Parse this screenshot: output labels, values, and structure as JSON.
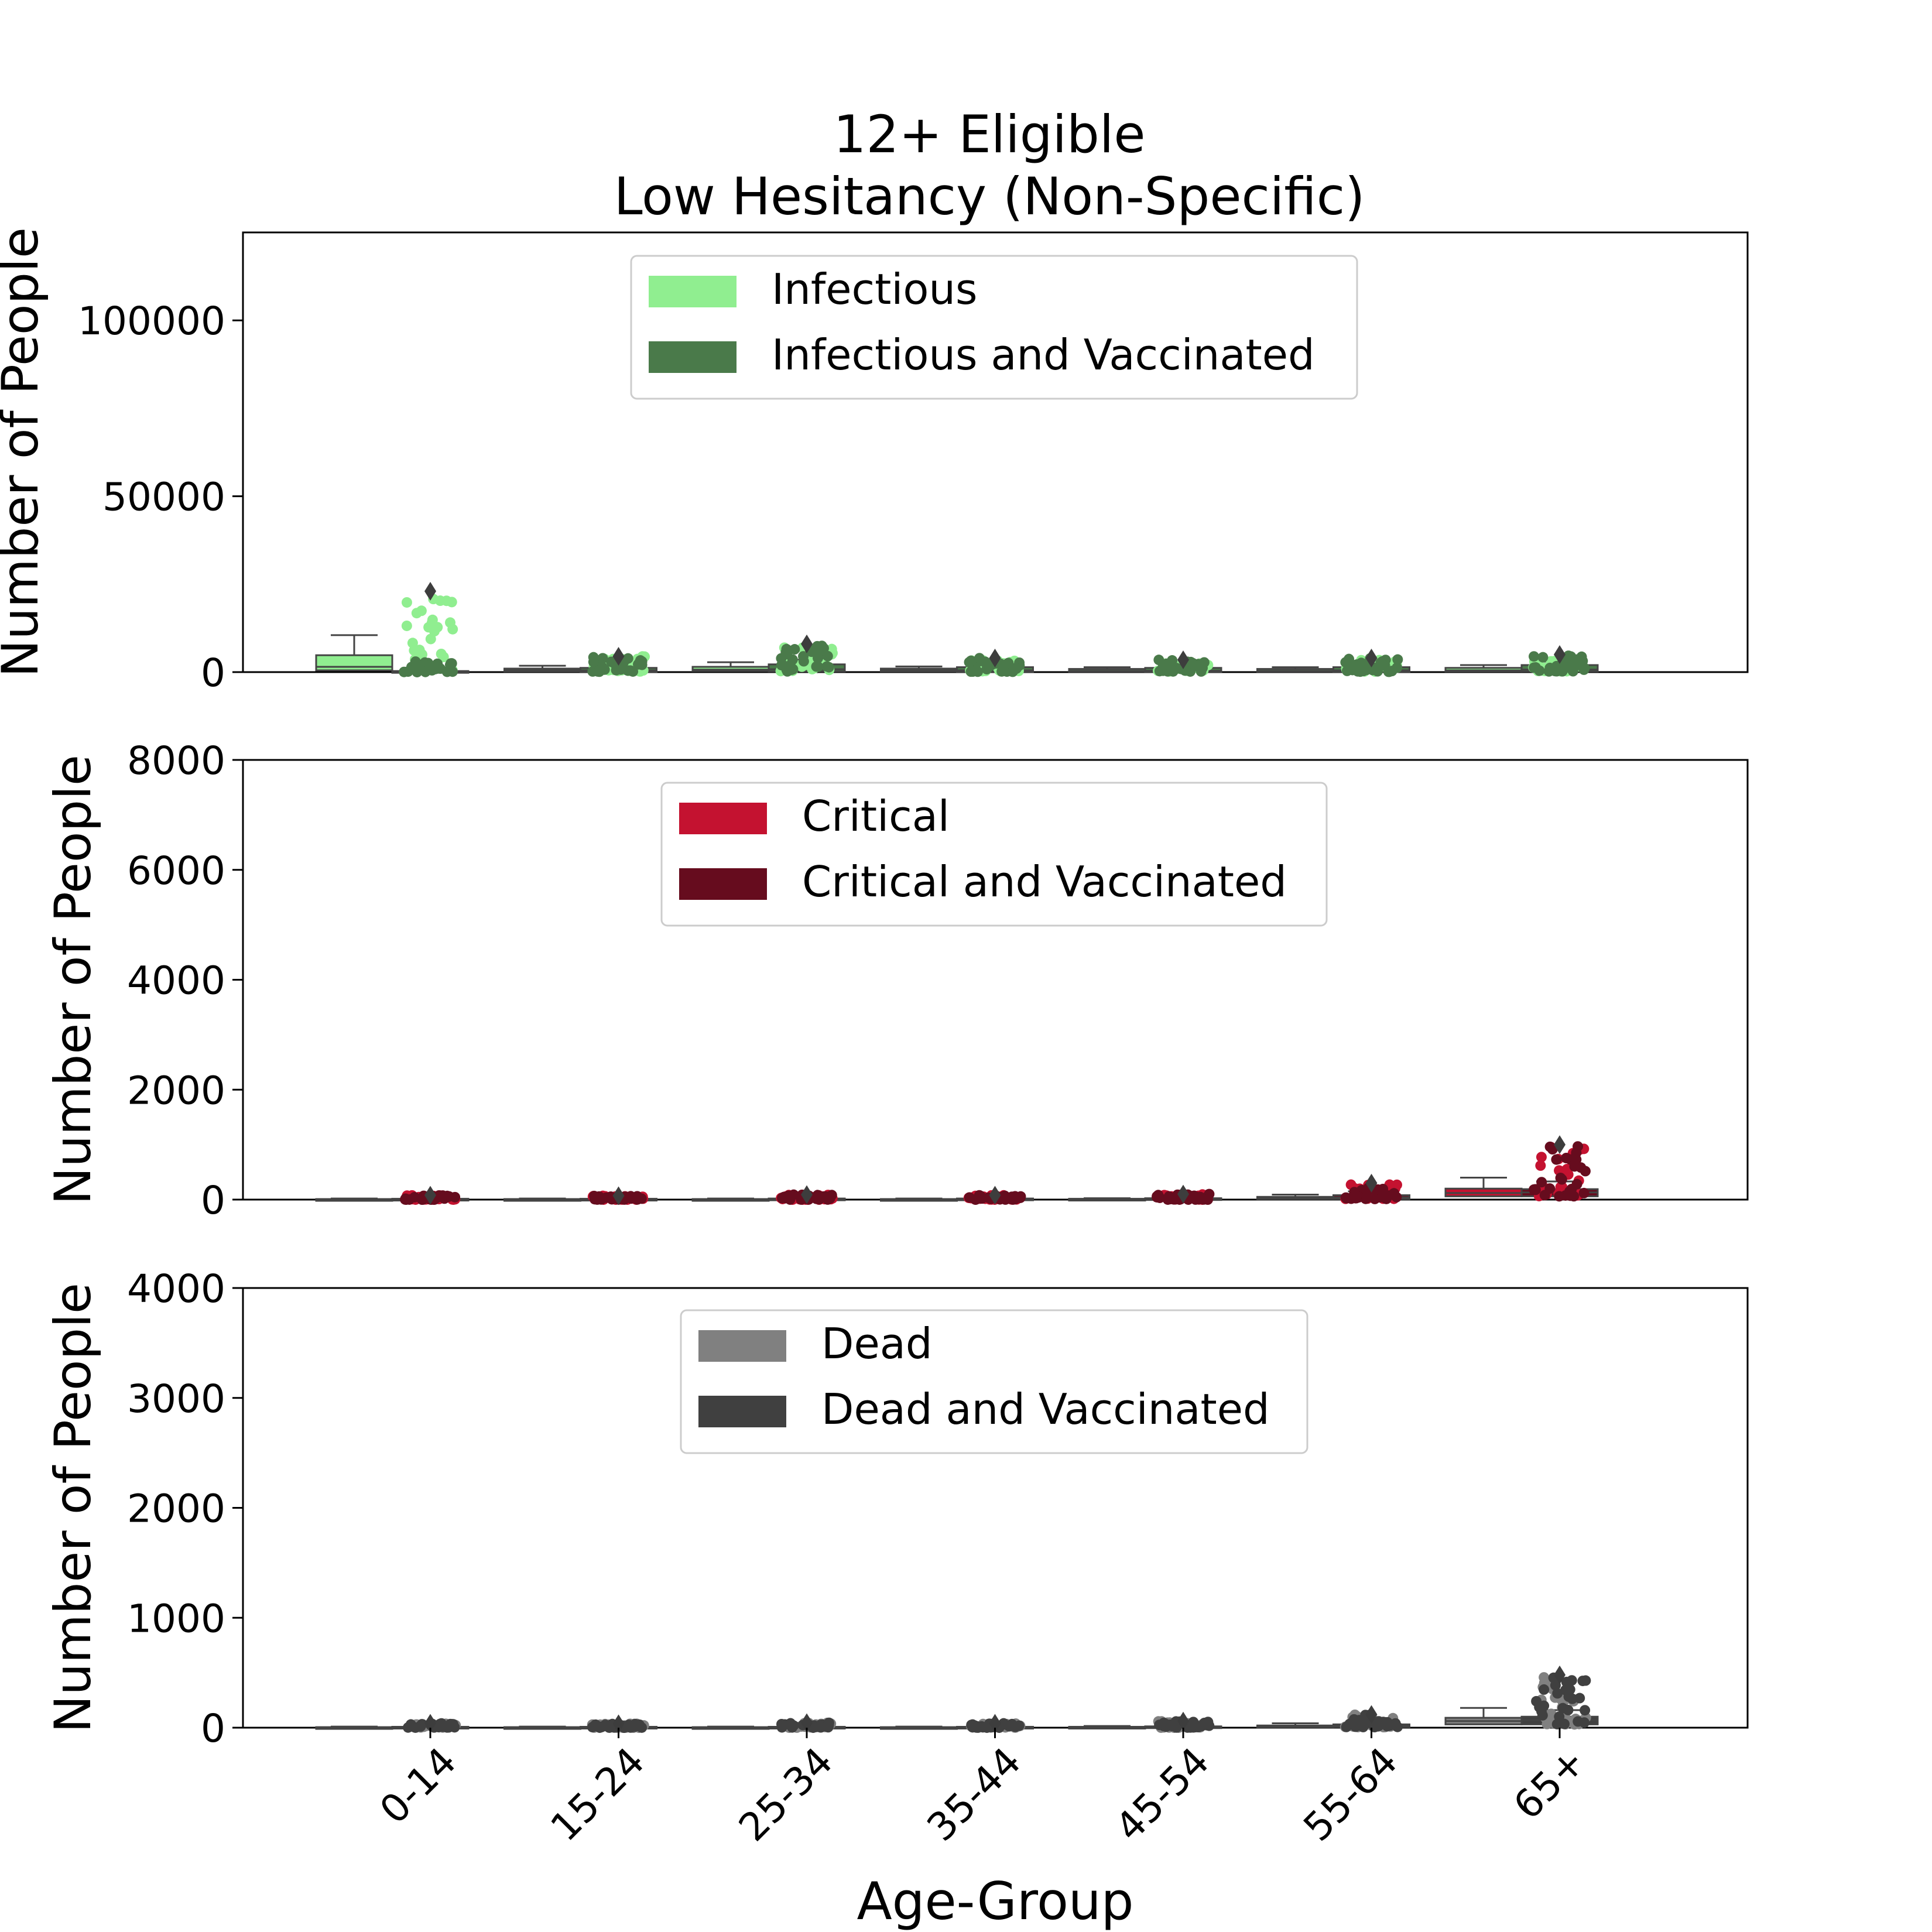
{
  "figure": {
    "title_line1": "12+ Eligible",
    "title_line2": "Low Hesitancy (Non-Specific)",
    "xlabel": "Age-Group"
  },
  "chart_data": [
    {
      "type": "box",
      "ylabel": "Number of People",
      "ylim": [
        0,
        125000
      ],
      "yticks": [
        0,
        50000,
        100000
      ],
      "categories": [
        "0-14",
        "15-24",
        "25-34",
        "35-44",
        "45-54",
        "55-64",
        "65+"
      ],
      "legend_placement": "top-center",
      "series": [
        {
          "name": "Infectious",
          "color": "#90ee90",
          "boxes": [
            {
              "q1": 500,
              "q3": 4800,
              "median": 1500,
              "whisker_high": 10500,
              "outlier_max": 23000
            },
            {
              "q1": 200,
              "q3": 1000,
              "median": 500,
              "whisker_high": 1800,
              "outlier_max": 4500
            },
            {
              "q1": 300,
              "q3": 1500,
              "median": 700,
              "whisker_high": 2800,
              "outlier_max": 7000
            },
            {
              "q1": 200,
              "q3": 1000,
              "median": 500,
              "whisker_high": 1600,
              "outlier_max": 3500
            },
            {
              "q1": 150,
              "q3": 900,
              "median": 400,
              "whisker_high": 1400,
              "outlier_max": 3000
            },
            {
              "q1": 150,
              "q3": 900,
              "median": 400,
              "whisker_high": 1400,
              "outlier_max": 3500
            },
            {
              "q1": 200,
              "q3": 1200,
              "median": 500,
              "whisker_high": 2000,
              "outlier_max": 4000
            }
          ]
        },
        {
          "name": "Infectious and Vaccinated",
          "color": "#4a7a4a",
          "boxes": [
            {
              "q1": 0,
              "q3": 300,
              "median": 100,
              "whisker_high": 500,
              "outlier_max": 3000
            },
            {
              "q1": 100,
              "q3": 1200,
              "median": 500,
              "whisker_high": 2000,
              "outlier_max": 4500
            },
            {
              "q1": 200,
              "q3": 2200,
              "median": 800,
              "whisker_high": 3500,
              "outlier_max": 8000
            },
            {
              "q1": 100,
              "q3": 1400,
              "median": 500,
              "whisker_high": 2200,
              "outlier_max": 4000
            },
            {
              "q1": 100,
              "q3": 1200,
              "median": 400,
              "whisker_high": 1800,
              "outlier_max": 3500
            },
            {
              "q1": 100,
              "q3": 1400,
              "median": 500,
              "whisker_high": 2200,
              "outlier_max": 4000
            },
            {
              "q1": 200,
              "q3": 2000,
              "median": 700,
              "whisker_high": 3000,
              "outlier_max": 5000
            }
          ]
        }
      ]
    },
    {
      "type": "box",
      "ylabel": "Number of People",
      "ylim": [
        0,
        8000
      ],
      "yticks": [
        0,
        2000,
        4000,
        6000,
        8000
      ],
      "categories": [
        "0-14",
        "15-24",
        "25-34",
        "35-44",
        "45-54",
        "55-64",
        "65+"
      ],
      "legend_placement": "top-center",
      "series": [
        {
          "name": "Critical",
          "color": "#c41230",
          "boxes": [
            {
              "q1": 0,
              "q3": 10,
              "median": 5,
              "whisker_high": 20,
              "outlier_max": 80
            },
            {
              "q1": 0,
              "q3": 10,
              "median": 5,
              "whisker_high": 20,
              "outlier_max": 70
            },
            {
              "q1": 0,
              "q3": 10,
              "median": 5,
              "whisker_high": 20,
              "outlier_max": 90
            },
            {
              "q1": 0,
              "q3": 10,
              "median": 5,
              "whisker_high": 20,
              "outlier_max": 80
            },
            {
              "q1": 0,
              "q3": 15,
              "median": 5,
              "whisker_high": 25,
              "outlier_max": 100
            },
            {
              "q1": 10,
              "q3": 50,
              "median": 25,
              "whisker_high": 90,
              "outlier_max": 280
            },
            {
              "q1": 60,
              "q3": 200,
              "median": 120,
              "whisker_high": 400,
              "outlier_max": 980
            }
          ]
        },
        {
          "name": "Critical and Vaccinated",
          "color": "#660c1e",
          "boxes": [
            {
              "q1": 0,
              "q3": 15,
              "median": 5,
              "whisker_high": 30,
              "outlier_max": 80
            },
            {
              "q1": 0,
              "q3": 15,
              "median": 5,
              "whisker_high": 30,
              "outlier_max": 70
            },
            {
              "q1": 0,
              "q3": 20,
              "median": 5,
              "whisker_high": 35,
              "outlier_max": 90
            },
            {
              "q1": 0,
              "q3": 20,
              "median": 5,
              "whisker_high": 35,
              "outlier_max": 80
            },
            {
              "q1": 0,
              "q3": 25,
              "median": 10,
              "whisker_high": 40,
              "outlier_max": 100
            },
            {
              "q1": 10,
              "q3": 80,
              "median": 40,
              "whisker_high": 150,
              "outlier_max": 300
            },
            {
              "q1": 60,
              "q3": 190,
              "median": 130,
              "whisker_high": 330,
              "outlier_max": 1000
            }
          ]
        }
      ]
    },
    {
      "type": "box",
      "ylabel": "Number of People",
      "ylim": [
        0,
        4000
      ],
      "yticks": [
        0,
        1000,
        2000,
        3000,
        4000
      ],
      "categories": [
        "0-14",
        "15-24",
        "25-34",
        "35-44",
        "45-54",
        "55-64",
        "65+"
      ],
      "legend_placement": "top-center",
      "series": [
        {
          "name": "Dead",
          "color": "#808080",
          "boxes": [
            {
              "q1": 0,
              "q3": 5,
              "median": 2,
              "whisker_high": 10,
              "outlier_max": 40
            },
            {
              "q1": 0,
              "q3": 5,
              "median": 2,
              "whisker_high": 10,
              "outlier_max": 35
            },
            {
              "q1": 0,
              "q3": 5,
              "median": 2,
              "whisker_high": 10,
              "outlier_max": 45
            },
            {
              "q1": 0,
              "q3": 5,
              "median": 2,
              "whisker_high": 10,
              "outlier_max": 40
            },
            {
              "q1": 0,
              "q3": 8,
              "median": 3,
              "whisker_high": 15,
              "outlier_max": 60
            },
            {
              "q1": 5,
              "q3": 20,
              "median": 10,
              "whisker_high": 40,
              "outlier_max": 120
            },
            {
              "q1": 30,
              "q3": 90,
              "median": 60,
              "whisker_high": 180,
              "outlier_max": 460
            }
          ]
        },
        {
          "name": "Dead and Vaccinated",
          "color": "#404040",
          "boxes": [
            {
              "q1": 0,
              "q3": 8,
              "median": 3,
              "whisker_high": 15,
              "outlier_max": 40
            },
            {
              "q1": 0,
              "q3": 8,
              "median": 3,
              "whisker_high": 15,
              "outlier_max": 35
            },
            {
              "q1": 0,
              "q3": 8,
              "median": 3,
              "whisker_high": 15,
              "outlier_max": 45
            },
            {
              "q1": 0,
              "q3": 8,
              "median": 3,
              "whisker_high": 15,
              "outlier_max": 40
            },
            {
              "q1": 0,
              "q3": 12,
              "median": 5,
              "whisker_high": 20,
              "outlier_max": 60
            },
            {
              "q1": 5,
              "q3": 30,
              "median": 15,
              "whisker_high": 50,
              "outlier_max": 120
            },
            {
              "q1": 30,
              "q3": 100,
              "median": 70,
              "whisker_high": 160,
              "outlier_max": 480
            }
          ]
        }
      ]
    }
  ]
}
